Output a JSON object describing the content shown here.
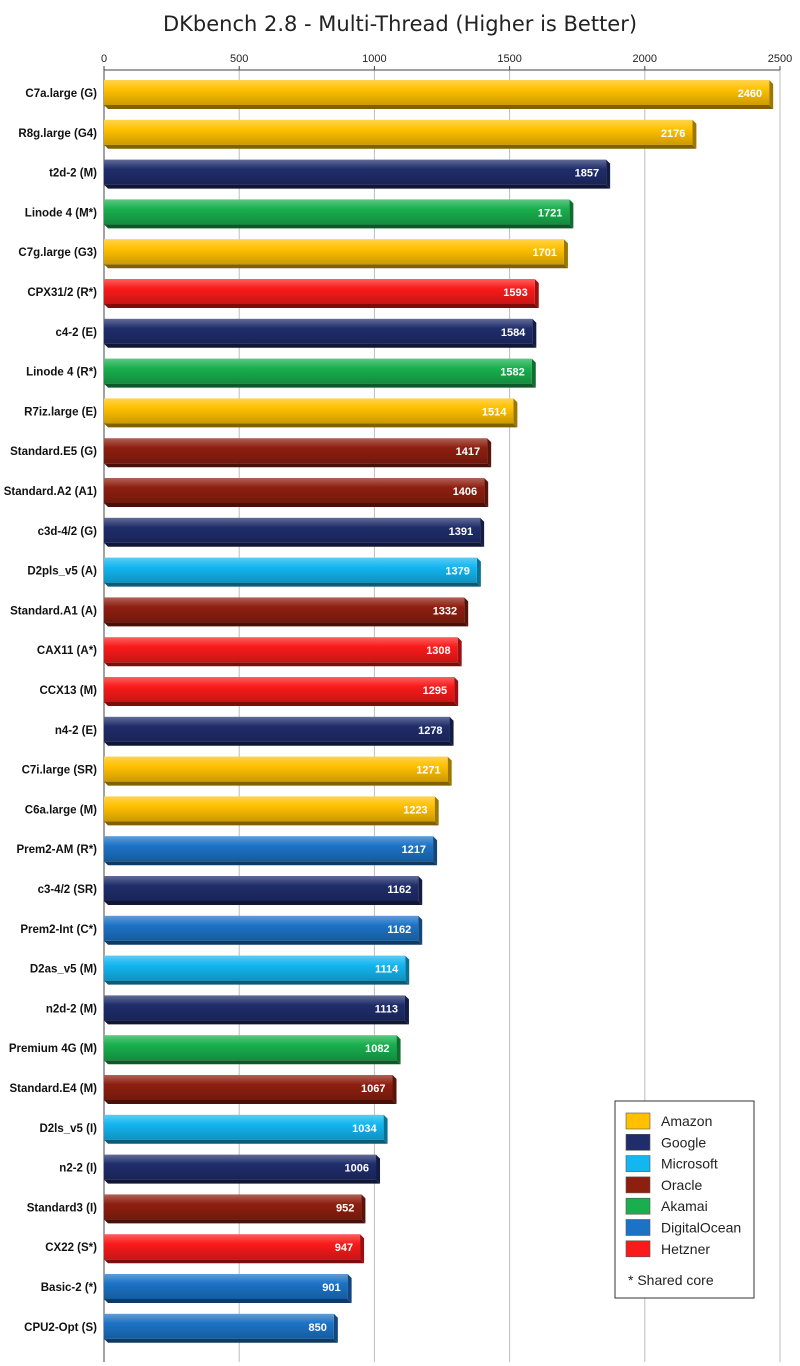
{
  "chart_data": {
    "type": "bar",
    "orientation": "horizontal",
    "title": "DKbench 2.8 - Multi-Thread (Higher is Better)",
    "xlim": [
      0,
      2500
    ],
    "xticks": [
      0,
      500,
      1000,
      1500,
      2000,
      2500
    ],
    "grid": true,
    "legend_position": "bottom-right",
    "legend": [
      {
        "name": "Amazon",
        "color": "#FFC000"
      },
      {
        "name": "Google",
        "color": "#1F2D6B"
      },
      {
        "name": "Microsoft",
        "color": "#13B6F0"
      },
      {
        "name": "Oracle",
        "color": "#8E1F10"
      },
      {
        "name": "Akamai",
        "color": "#19AF4E"
      },
      {
        "name": "DigitalOcean",
        "color": "#1C73C6"
      },
      {
        "name": "Hetzner",
        "color": "#FA1A1A"
      }
    ],
    "note": "* Shared core",
    "bars": [
      {
        "label": "C7a.large (G)",
        "value": 2460,
        "provider": "Amazon"
      },
      {
        "label": "R8g.large (G4)",
        "value": 2176,
        "provider": "Amazon"
      },
      {
        "label": "t2d-2 (M)",
        "value": 1857,
        "provider": "Google"
      },
      {
        "label": "Linode 4 (M*)",
        "value": 1721,
        "provider": "Akamai"
      },
      {
        "label": "C7g.large (G3)",
        "value": 1701,
        "provider": "Amazon"
      },
      {
        "label": "CPX31/2 (R*)",
        "value": 1593,
        "provider": "Hetzner"
      },
      {
        "label": "c4-2 (E)",
        "value": 1584,
        "provider": "Google"
      },
      {
        "label": "Linode 4 (R*)",
        "value": 1582,
        "provider": "Akamai"
      },
      {
        "label": "R7iz.large (E)",
        "value": 1514,
        "provider": "Amazon"
      },
      {
        "label": "Standard.E5 (G)",
        "value": 1417,
        "provider": "Oracle"
      },
      {
        "label": "Standard.A2 (A1)",
        "value": 1406,
        "provider": "Oracle"
      },
      {
        "label": "c3d-4/2 (G)",
        "value": 1391,
        "provider": "Google"
      },
      {
        "label": "D2pls_v5 (A)",
        "value": 1379,
        "provider": "Microsoft"
      },
      {
        "label": "Standard.A1 (A)",
        "value": 1332,
        "provider": "Oracle"
      },
      {
        "label": "CAX11 (A*)",
        "value": 1308,
        "provider": "Hetzner"
      },
      {
        "label": "CCX13 (M)",
        "value": 1295,
        "provider": "Hetzner"
      },
      {
        "label": "n4-2 (E)",
        "value": 1278,
        "provider": "Google"
      },
      {
        "label": "C7i.large (SR)",
        "value": 1271,
        "provider": "Amazon"
      },
      {
        "label": "C6a.large (M)",
        "value": 1223,
        "provider": "Amazon"
      },
      {
        "label": "Prem2-AM (R*)",
        "value": 1217,
        "provider": "DigitalOcean"
      },
      {
        "label": "c3-4/2 (SR)",
        "value": 1162,
        "provider": "Google"
      },
      {
        "label": "Prem2-Int (C*)",
        "value": 1162,
        "provider": "DigitalOcean"
      },
      {
        "label": "D2as_v5 (M)",
        "value": 1114,
        "provider": "Microsoft"
      },
      {
        "label": "n2d-2 (M)",
        "value": 1113,
        "provider": "Google"
      },
      {
        "label": "Premium 4G (M)",
        "value": 1082,
        "provider": "Akamai"
      },
      {
        "label": "Standard.E4 (M)",
        "value": 1067,
        "provider": "Oracle"
      },
      {
        "label": "D2ls_v5 (I)",
        "value": 1034,
        "provider": "Microsoft"
      },
      {
        "label": "n2-2 (I)",
        "value": 1006,
        "provider": "Google"
      },
      {
        "label": "Standard3 (I)",
        "value": 952,
        "provider": "Oracle"
      },
      {
        "label": "CX22 (S*)",
        "value": 947,
        "provider": "Hetzner"
      },
      {
        "label": "Basic-2 (*)",
        "value": 901,
        "provider": "DigitalOcean"
      },
      {
        "label": "CPU2-Opt (S)",
        "value": 850,
        "provider": "DigitalOcean"
      }
    ]
  }
}
